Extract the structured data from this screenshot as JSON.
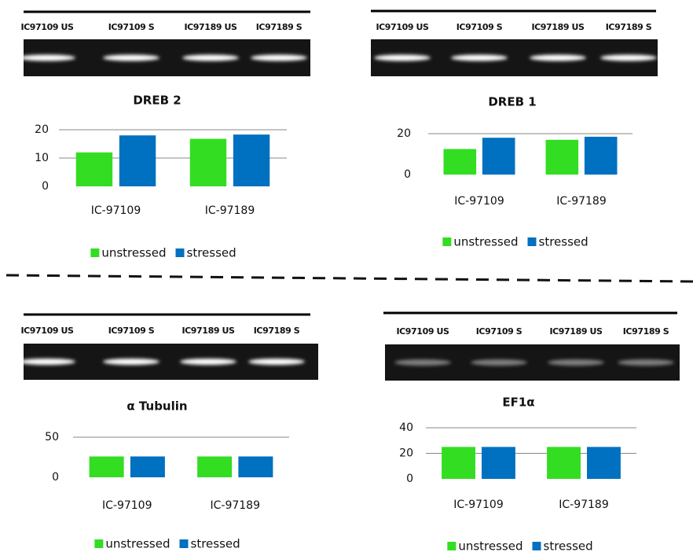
{
  "chart_data": [
    {
      "type": "bar",
      "title": "DREB 2",
      "lanes": [
        "IC97109 US",
        "IC97109 S",
        "IC97189  US",
        "IC97189 S"
      ],
      "categories": [
        "IC-97109",
        "IC-97189"
      ],
      "series": [
        {
          "name": "unstressed",
          "color": "#33dd22",
          "values": [
            12,
            16.8
          ]
        },
        {
          "name": "stressed",
          "color": "#0070c0",
          "values": [
            18,
            18.3
          ]
        }
      ],
      "ylim": [
        0,
        20
      ],
      "yticks": [
        0,
        10,
        20
      ],
      "grid": true
    },
    {
      "type": "bar",
      "title": "DREB 1",
      "lanes": [
        "IC97109 US",
        "IC97109 S",
        "IC97189  US",
        "IC97189 S"
      ],
      "categories": [
        "IC-97109",
        "IC-97189"
      ],
      "series": [
        {
          "name": "unstressed",
          "color": "#33dd22",
          "values": [
            12.5,
            17
          ]
        },
        {
          "name": "stressed",
          "color": "#0070c0",
          "values": [
            18,
            18.5
          ]
        }
      ],
      "ylim": [
        0,
        20
      ],
      "yticks": [
        0,
        20
      ],
      "grid": true
    },
    {
      "type": "bar",
      "title": "α Tubulin",
      "lanes": [
        "IC97109 US",
        "IC97109 S",
        "IC97189  US",
        "IC97189 S"
      ],
      "categories": [
        "IC-97109",
        "IC-97189"
      ],
      "series": [
        {
          "name": "unstressed",
          "color": "#33dd22",
          "values": [
            26,
            26
          ]
        },
        {
          "name": "stressed",
          "color": "#0070c0",
          "values": [
            26,
            26
          ]
        }
      ],
      "ylim": [
        0,
        50
      ],
      "yticks": [
        0,
        50
      ],
      "grid": true
    },
    {
      "type": "bar",
      "title": "EF1α",
      "lanes": [
        "IC97109 US",
        "IC97109 S",
        "IC97189 US",
        "IC97189 S"
      ],
      "categories": [
        "IC-97109",
        "IC-97189"
      ],
      "series": [
        {
          "name": "unstressed",
          "color": "#33dd22",
          "values": [
            25,
            25
          ]
        },
        {
          "name": "stressed",
          "color": "#0070c0",
          "values": [
            25,
            25
          ]
        }
      ],
      "ylim": [
        0,
        40
      ],
      "yticks": [
        0,
        20,
        40
      ],
      "grid": true
    }
  ]
}
